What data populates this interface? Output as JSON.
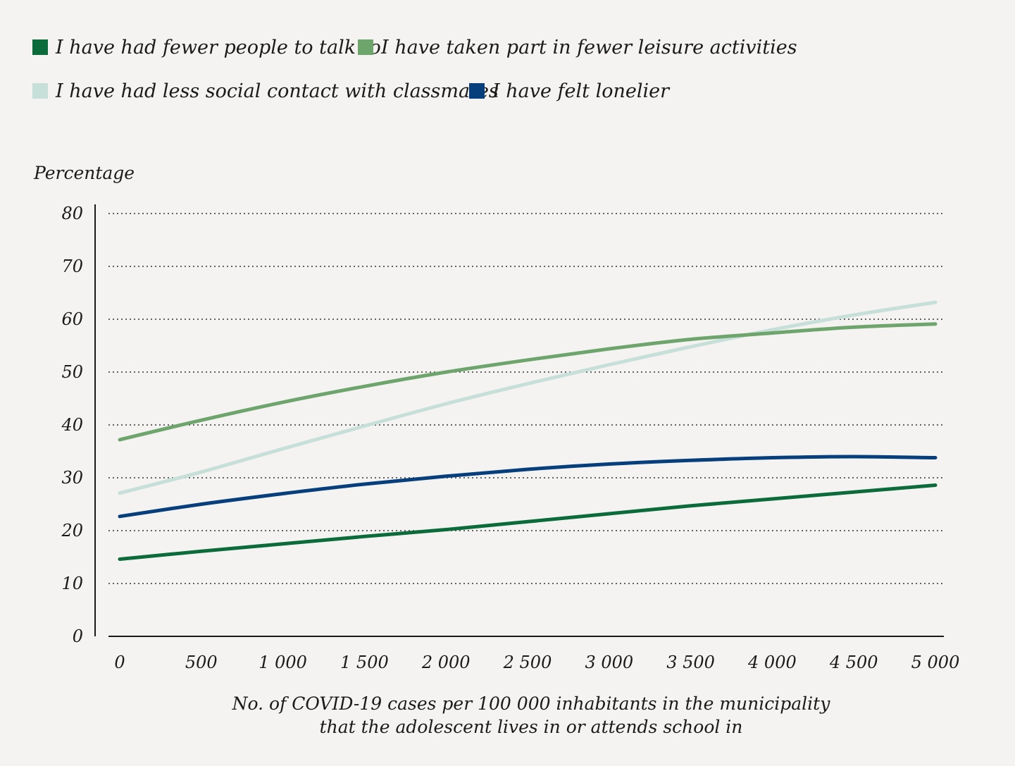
{
  "chart_data": {
    "type": "line",
    "title": "",
    "ylabel": "Percentage",
    "xlabel_lines": [
      "No. of COVID-19 cases per 100 000 inhabitants in the municipality",
      "that the adolescent lives in or attends school in"
    ],
    "xlim": [
      0,
      5000
    ],
    "ylim": [
      0,
      80
    ],
    "x_ticks": [
      0,
      500,
      1000,
      1500,
      2000,
      2500,
      3000,
      3500,
      4000,
      4500,
      5000
    ],
    "x_tick_labels": [
      "0",
      "500",
      "1 000",
      "1 500",
      "2 000",
      "2 500",
      "3 000",
      "3 500",
      "4 000",
      "4 500",
      "5 000"
    ],
    "y_ticks": [
      0,
      10,
      20,
      30,
      40,
      50,
      60,
      70,
      80
    ],
    "y_tick_labels": [
      "0",
      "10",
      "20",
      "30",
      "40",
      "50",
      "60",
      "70",
      "80"
    ],
    "grid": "horizontal dotted",
    "legend_position": "top-left",
    "x": [
      0,
      500,
      1000,
      1500,
      2000,
      2500,
      3000,
      3500,
      4000,
      4500,
      5000
    ],
    "series": [
      {
        "name": "I have had fewer people to talk to",
        "color": "#0c6b3a",
        "values": [
          14.6,
          16.1,
          17.5,
          18.9,
          20.2,
          21.7,
          23.2,
          24.7,
          26.0,
          27.3,
          28.6
        ]
      },
      {
        "name": "I have taken part in fewer leisure activities",
        "color": "#6ea56d",
        "values": [
          37.2,
          40.9,
          44.3,
          47.3,
          50.0,
          52.3,
          54.4,
          56.2,
          57.4,
          58.5,
          59.1
        ]
      },
      {
        "name": "I have had less social contact with classmates",
        "color": "#c6dfd8",
        "values": [
          27.1,
          31.1,
          35.5,
          39.8,
          44.0,
          47.8,
          51.4,
          54.8,
          58.0,
          60.8,
          63.2
        ]
      },
      {
        "name": "I have felt lonelier",
        "color": "#063f7c",
        "values": [
          22.7,
          25.0,
          27.0,
          28.8,
          30.3,
          31.6,
          32.6,
          33.3,
          33.8,
          34.0,
          33.8
        ]
      }
    ]
  }
}
